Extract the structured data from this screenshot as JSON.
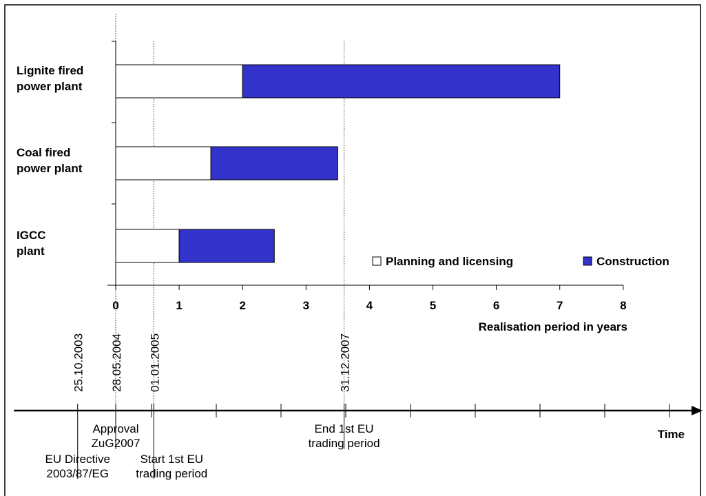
{
  "chart_data": {
    "type": "bar",
    "orientation": "horizontal",
    "stacked": true,
    "categories": [
      [
        "Lignite fired",
        "power plant"
      ],
      [
        "Coal fired",
        "power plant"
      ],
      [
        "IGCC",
        "plant"
      ]
    ],
    "series": [
      {
        "name": "Planning and licensing",
        "values": [
          2,
          1.5,
          1
        ],
        "color": "#ffffff"
      },
      {
        "name": "Construction",
        "values": [
          5,
          2,
          1.5
        ],
        "color": "#3333cc"
      }
    ],
    "xlabel": "Realisation period in years",
    "xlim": [
      0,
      8
    ],
    "xticks": [
      "0",
      "1",
      "2",
      "3",
      "4",
      "5",
      "6",
      "7",
      "8"
    ],
    "legend_position": "bottom-right",
    "date_markers": [
      {
        "label": "25.10.2003",
        "x": -0.6
      },
      {
        "label": "28.05.2004",
        "x": 0
      },
      {
        "label": "01.01.2005",
        "x": 0.6
      },
      {
        "label": "31.12.2007",
        "x": 3.6
      }
    ],
    "vertical_guides_at": [
      0,
      0.6,
      3.6
    ]
  },
  "timeline": {
    "label": "Time",
    "events": [
      {
        "text": [
          "EU Directive",
          "2003/87/EG"
        ],
        "at": -0.6,
        "level": "low"
      },
      {
        "text": [
          "Approval",
          "ZuG2007"
        ],
        "at": 0,
        "level": "high"
      },
      {
        "text": [
          "Start 1st EU",
          "trading period"
        ],
        "at": 0.6,
        "level": "low"
      },
      {
        "text": [
          "End 1st EU",
          "trading period"
        ],
        "at": 3.6,
        "level": "high"
      }
    ]
  }
}
